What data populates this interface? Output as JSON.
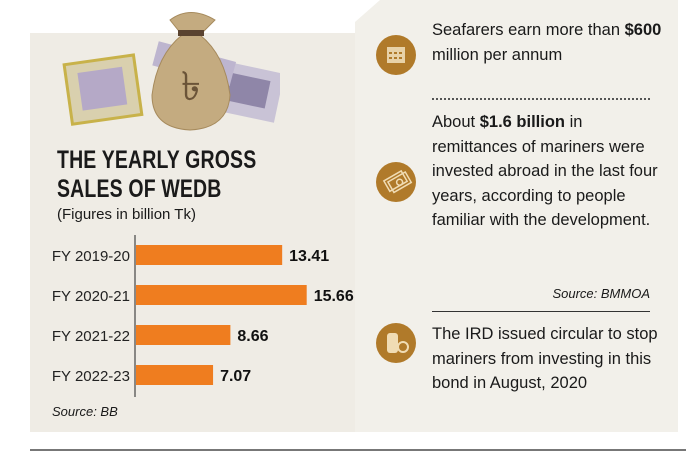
{
  "title_line1": "THE YEARLY GROSS",
  "title_line2": "SALES OF WEDB",
  "subtitle": "(Figures in billion Tk)",
  "chart_source": "Source: BB",
  "chart_data": {
    "type": "bar",
    "orientation": "horizontal",
    "title": "THE YEARLY GROSS SALES OF WEDB",
    "subtitle": "(Figures in billion Tk)",
    "categories": [
      "FY 2019-20",
      "FY 2020-21",
      "FY 2021-22",
      "FY 2022-23"
    ],
    "values": [
      13.41,
      15.66,
      8.66,
      7.07
    ],
    "labels": [
      "13.41",
      "15.66",
      "8.66",
      "7.07"
    ],
    "xlim": [
      0,
      16
    ],
    "bar_color": "#ef7d1f",
    "grid": false
  },
  "facts": [
    {
      "pre": "Seafarers earn more than ",
      "bold": "$600",
      "post": " million per annum",
      "icon": "calendar-icon"
    },
    {
      "pre": "About ",
      "bold": "$1.6 billion",
      "post": " in remittances of mariners were invested abroad in the last four years, according to people familiar with the development.",
      "icon": "money-icon"
    },
    {
      "pre": "The IRD issued circular to stop mariners from investing in this bond in August, 2020",
      "bold": "",
      "post": "",
      "icon": "coins-icon"
    }
  ],
  "facts_source": "Source: BMMOA",
  "colors": {
    "accent": "#ef7d1f",
    "icon": "#b07a2a",
    "panel": "#efece5"
  }
}
